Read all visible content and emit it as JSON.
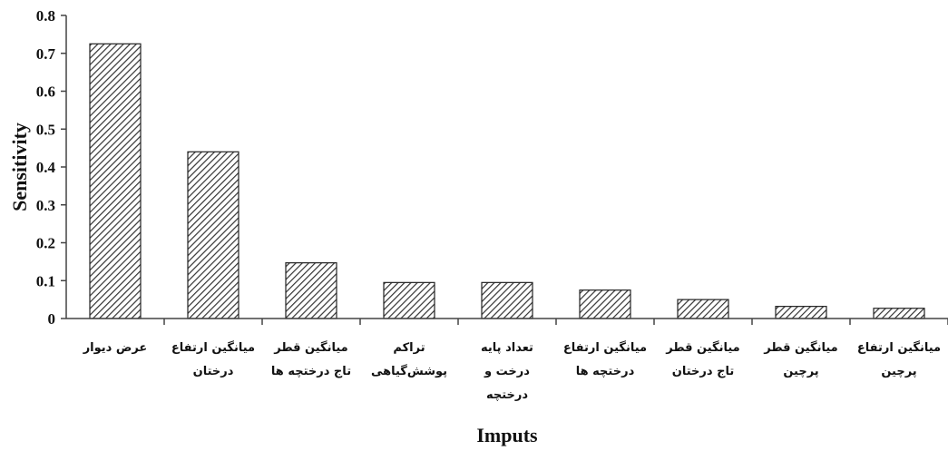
{
  "chart_data": {
    "type": "bar",
    "xlabel": "Imputs",
    "ylabel": "Sensitivity",
    "ylim": [
      0,
      0.8
    ],
    "yticks": [
      "0",
      "0.1",
      "0.2",
      "0.3",
      "0.4",
      "0.5",
      "0.6",
      "0.7",
      "0.8"
    ],
    "grid": false,
    "legend": "none",
    "bar_fill": "diagonal-hatch",
    "colors": {
      "bar_stroke": "#222222",
      "hatch": "#333333",
      "axis": "#444444"
    },
    "categories": [
      [
        "عرض دیوار"
      ],
      [
        "میانگین ارتفاع",
        "درختان"
      ],
      [
        "میانگین قطر",
        "تاج درختچه ها"
      ],
      [
        "تراکم",
        "پوشش‌گیاهی"
      ],
      [
        "تعداد پایه",
        "درخت و",
        "درختچه"
      ],
      [
        "میانگین ارتفاع",
        "درختچه ها"
      ],
      [
        "میانگین قطر",
        "تاج درختان"
      ],
      [
        "میانگین قطر",
        "پرچین"
      ],
      [
        "میانگین ارتفاع",
        "پرچین"
      ]
    ],
    "values": [
      0.725,
      0.44,
      0.147,
      0.095,
      0.095,
      0.075,
      0.05,
      0.032,
      0.027
    ]
  }
}
